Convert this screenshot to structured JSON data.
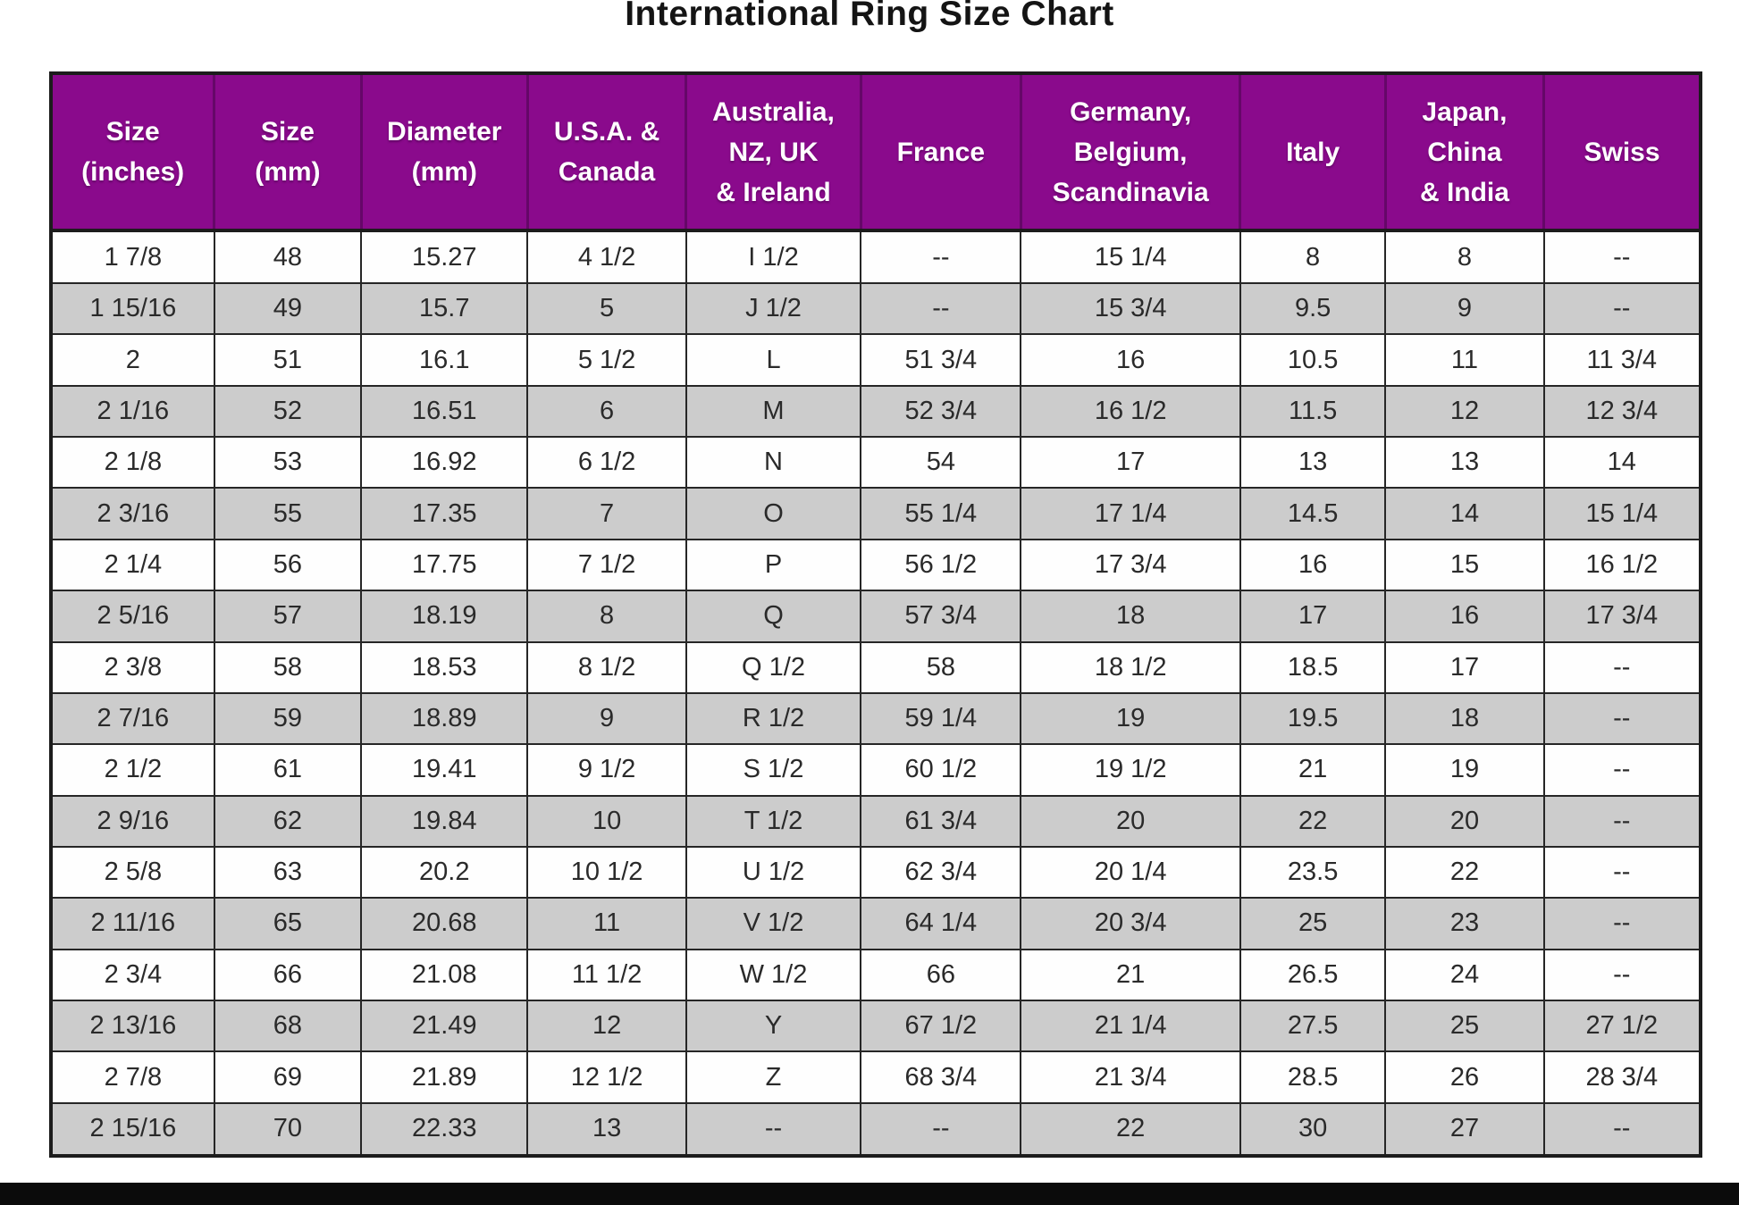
{
  "title": "International Ring Size Chart",
  "chart_data": {
    "type": "table",
    "title": "International Ring Size Chart",
    "missing_value_marker": "--",
    "columns": [
      "Size\n(inches)",
      "Size\n(mm)",
      "Diameter\n(mm)",
      "U.S.A. &\nCanada",
      "Australia,\nNZ, UK\n& Ireland",
      "France",
      "Germany,\nBelgium,\nScandinavia",
      "Italy",
      "Japan,\nChina\n& India",
      "Swiss"
    ],
    "rows": [
      [
        "1 7/8",
        "48",
        "15.27",
        "4 1/2",
        "I 1/2",
        "--",
        "15 1/4",
        "8",
        "8",
        "--"
      ],
      [
        "1 15/16",
        "49",
        "15.7",
        "5",
        "J 1/2",
        "--",
        "15 3/4",
        "9.5",
        "9",
        "--"
      ],
      [
        "2",
        "51",
        "16.1",
        "5 1/2",
        "L",
        "51 3/4",
        "16",
        "10.5",
        "11",
        "11 3/4"
      ],
      [
        "2 1/16",
        "52",
        "16.51",
        "6",
        "M",
        "52 3/4",
        "16 1/2",
        "11.5",
        "12",
        "12 3/4"
      ],
      [
        "2 1/8",
        "53",
        "16.92",
        "6 1/2",
        "N",
        "54",
        "17",
        "13",
        "13",
        "14"
      ],
      [
        "2 3/16",
        "55",
        "17.35",
        "7",
        "O",
        "55 1/4",
        "17 1/4",
        "14.5",
        "14",
        "15 1/4"
      ],
      [
        "2 1/4",
        "56",
        "17.75",
        "7 1/2",
        "P",
        "56 1/2",
        "17 3/4",
        "16",
        "15",
        "16 1/2"
      ],
      [
        "2 5/16",
        "57",
        "18.19",
        "8",
        "Q",
        "57 3/4",
        "18",
        "17",
        "16",
        "17 3/4"
      ],
      [
        "2 3/8",
        "58",
        "18.53",
        "8 1/2",
        "Q 1/2",
        "58",
        "18 1/2",
        "18.5",
        "17",
        "--"
      ],
      [
        "2 7/16",
        "59",
        "18.89",
        "9",
        "R 1/2",
        "59 1/4",
        "19",
        "19.5",
        "18",
        "--"
      ],
      [
        "2 1/2",
        "61",
        "19.41",
        "9 1/2",
        "S 1/2",
        "60 1/2",
        "19 1/2",
        "21",
        "19",
        "--"
      ],
      [
        "2 9/16",
        "62",
        "19.84",
        "10",
        "T 1/2",
        "61 3/4",
        "20",
        "22",
        "20",
        "--"
      ],
      [
        "2 5/8",
        "63",
        "20.2",
        "10 1/2",
        "U 1/2",
        "62 3/4",
        "20 1/4",
        "23.5",
        "22",
        "--"
      ],
      [
        "2 11/16",
        "65",
        "20.68",
        "11",
        "V 1/2",
        "64 1/4",
        "20 3/4",
        "25",
        "23",
        "--"
      ],
      [
        "2 3/4",
        "66",
        "21.08",
        "11 1/2",
        "W 1/2",
        "66",
        "21",
        "26.5",
        "24",
        "--"
      ],
      [
        "2 13/16",
        "68",
        "21.49",
        "12",
        "Y",
        "67 1/2",
        "21 1/4",
        "27.5",
        "25",
        "27 1/2"
      ],
      [
        "2 7/8",
        "69",
        "21.89",
        "12 1/2",
        "Z",
        "68 3/4",
        "21 3/4",
        "28.5",
        "26",
        "28 3/4"
      ],
      [
        "2 15/16",
        "70",
        "22.33",
        "13",
        "--",
        "--",
        "22",
        "30",
        "27",
        "--"
      ]
    ]
  },
  "colors": {
    "header_bg": "#8A0A8C",
    "header_text": "#FFFFFF",
    "row_bg": "#FEFEFE",
    "row_alt_bg": "#CCCCCC",
    "grid": "#262626",
    "title_text": "#141414",
    "bottom_bar": "#0B0B0B"
  }
}
